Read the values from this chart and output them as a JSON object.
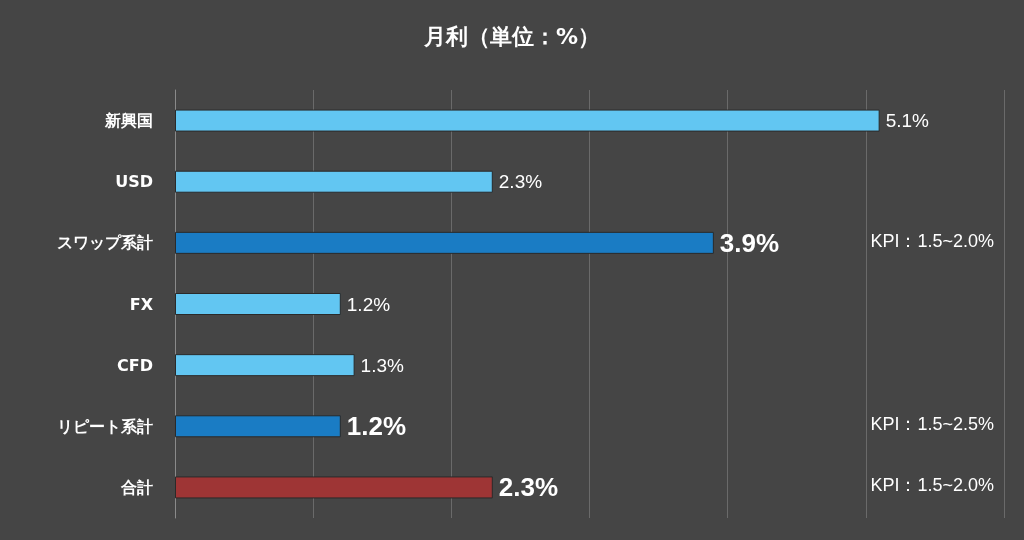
{
  "chart_data": {
    "type": "bar",
    "orientation": "horizontal",
    "title": "月利（単位：%）",
    "categories": [
      "新興国",
      "USD",
      "スワップ系計",
      "FX",
      "CFD",
      "リピート系計",
      "合計"
    ],
    "values": [
      5.1,
      2.3,
      3.9,
      1.2,
      1.3,
      1.2,
      2.3
    ],
    "colors": [
      "#62c6f2",
      "#62c6f2",
      "#1a7cc4",
      "#62c6f2",
      "#62c6f2",
      "#1a7cc4",
      "#9e3535"
    ],
    "value_labels": [
      "5.1%",
      "2.3%",
      "3.9%",
      "1.2%",
      "1.3%",
      "1.2%",
      "2.3%"
    ],
    "xlim": [
      0,
      6
    ],
    "xticks": [
      {
        "value": 0,
        "label": null
      },
      {
        "value": 1,
        "label": null
      },
      {
        "value": 2,
        "label": null
      },
      {
        "value": 3,
        "label": null
      },
      {
        "value": 4,
        "label": null
      },
      {
        "value": 5,
        "label": null
      },
      {
        "value": 6,
        "label": null
      }
    ],
    "tick_labels": "y",
    "grid": "x",
    "annotations": [
      "KPI：1.5~2.0%",
      "KPI：1.5~2.5%",
      "KPI：1.5~2.0%"
    ]
  }
}
